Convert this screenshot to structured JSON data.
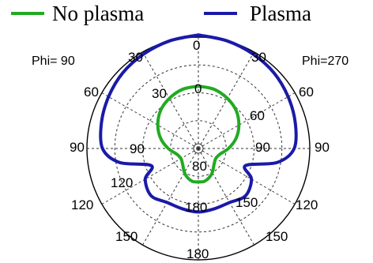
{
  "chart_data": {
    "type": "polar-line",
    "legend": {
      "placement": "top",
      "entries": [
        {
          "name": "No plasma",
          "color": "#22aa22"
        },
        {
          "name": "Plasma",
          "color": "#1a1aa8"
        }
      ]
    },
    "phi_labels": {
      "left": "Phi= 90",
      "right": "Phi=270"
    },
    "outer_theta_ticks": {
      "left": [
        "30",
        "60",
        "90",
        "120",
        "150"
      ],
      "right": [
        "30",
        "60",
        "90",
        "120",
        "150"
      ],
      "top": "0",
      "bottom": "180"
    },
    "inner_theta_ticks": [
      "0",
      "30",
      "60",
      "90",
      "120",
      "150",
      "80",
      "180"
    ],
    "radial_grid": "dashed",
    "series": [
      {
        "name": "No plasma",
        "color": "#22aa22",
        "theta_deg": [
          0,
          15,
          30,
          45,
          60,
          75,
          90,
          105,
          120,
          135,
          150,
          160,
          170,
          180
        ],
        "r": [
          0.56,
          0.55,
          0.52,
          0.48,
          0.42,
          0.35,
          0.27,
          0.2,
          0.18,
          0.2,
          0.25,
          0.28,
          0.3,
          0.3
        ]
      },
      {
        "name": "Plasma",
        "color": "#1a1aa8",
        "theta_deg": [
          0,
          15,
          30,
          45,
          60,
          75,
          90,
          100,
          110,
          120,
          135,
          150,
          165,
          180
        ],
        "r": [
          1.02,
          1.0,
          0.98,
          0.96,
          0.93,
          0.9,
          0.86,
          0.72,
          0.45,
          0.55,
          0.6,
          0.56,
          0.56,
          0.57
        ]
      }
    ]
  }
}
